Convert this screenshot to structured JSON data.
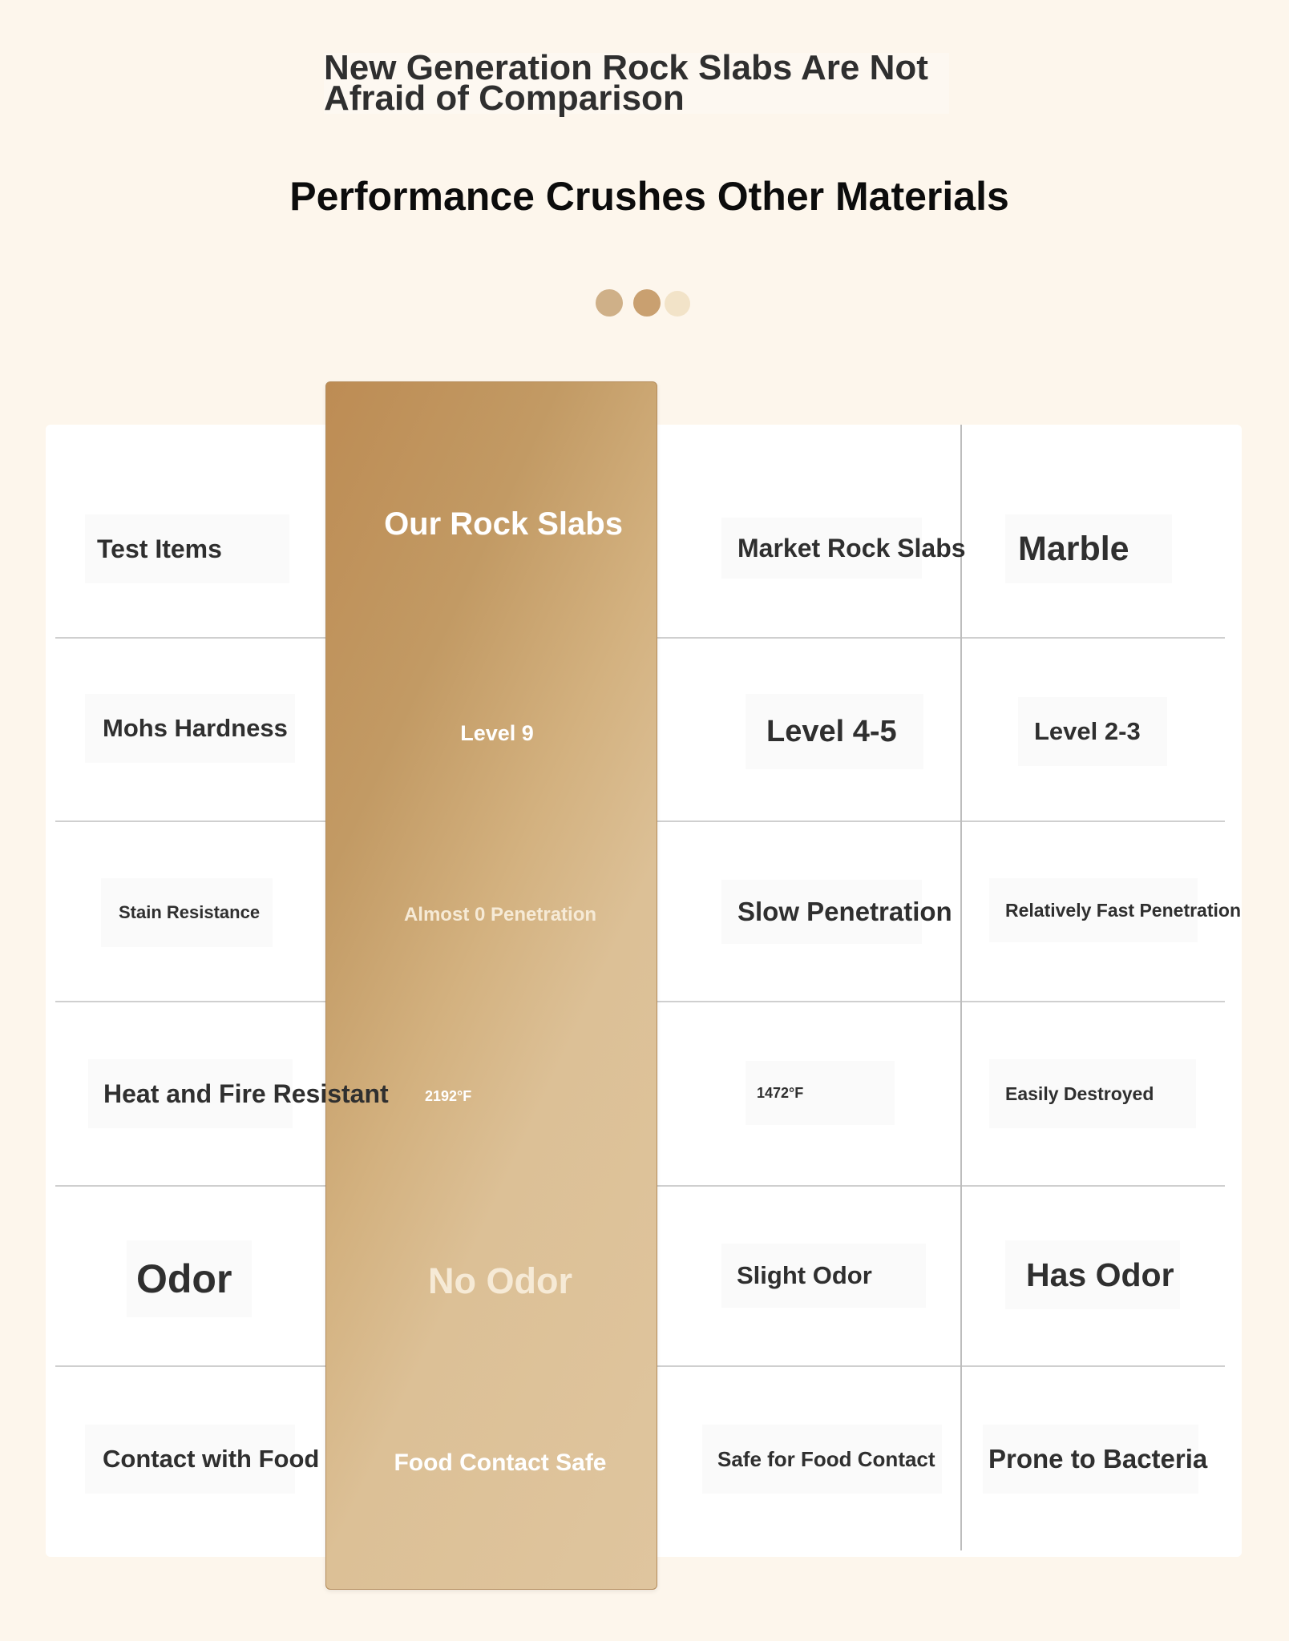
{
  "header": {
    "title": "New Generation Rock Slabs Are Not Afraid of Comparison",
    "subtitle": "Performance Crushes Other Materials"
  },
  "colors": {
    "page_background": "#fdf6ec",
    "highlight_gradient_start": "#bd8c54",
    "highlight_gradient_end": "#dfc59e",
    "dot_colors": [
      "#cfb088",
      "#c9a070",
      "#f2e3c8"
    ]
  },
  "table": {
    "columns": [
      "Test Items",
      "Our Rock Slabs",
      "Market Rock Slabs",
      "Marble"
    ],
    "rows": [
      {
        "item": "Mohs Hardness",
        "ours": "Level 9",
        "market": "Level 4-5",
        "marble": "Level 2-3"
      },
      {
        "item": "Stain Resistance",
        "ours": "Almost 0 Penetration",
        "market": "Slow Penetration",
        "marble": "Relatively Fast Penetration"
      },
      {
        "item": "Heat and Fire Resistant",
        "ours": "2192°F",
        "market": "1472°F",
        "marble": "Easily Destroyed"
      },
      {
        "item": "Odor",
        "ours": "No Odor",
        "market": "Slight Odor",
        "marble": "Has Odor"
      },
      {
        "item": "Contact with Food",
        "ours": "Food Contact Safe",
        "market": "Safe for Food Contact",
        "marble": "Prone to Bacteria"
      }
    ]
  }
}
